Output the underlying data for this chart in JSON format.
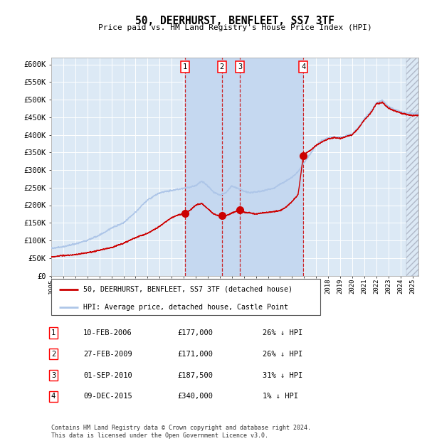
{
  "title": "50, DEERHURST, BENFLEET, SS7 3TF",
  "subtitle": "Price paid vs. HM Land Registry's House Price Index (HPI)",
  "ylim": [
    0,
    620000
  ],
  "yticks": [
    0,
    50000,
    100000,
    150000,
    200000,
    250000,
    300000,
    350000,
    400000,
    450000,
    500000,
    550000,
    600000
  ],
  "ytick_labels": [
    "£0",
    "£50K",
    "£100K",
    "£150K",
    "£200K",
    "£250K",
    "£300K",
    "£350K",
    "£400K",
    "£450K",
    "£500K",
    "£550K",
    "£600K"
  ],
  "hpi_color": "#aec6e8",
  "red_line_color": "#cc0000",
  "background_color": "#ffffff",
  "plot_bg_color": "#dce9f5",
  "grid_color": "#ffffff",
  "shade_color": "#c5d8f0",
  "transactions": [
    {
      "num": 1,
      "date": "10-FEB-2006",
      "price": 177000,
      "pct": "26%",
      "x_year": 2006.11
    },
    {
      "num": 2,
      "date": "27-FEB-2009",
      "price": 171000,
      "pct": "26%",
      "x_year": 2009.16
    },
    {
      "num": 3,
      "date": "01-SEP-2010",
      "price": 187500,
      "pct": "31%",
      "x_year": 2010.67
    },
    {
      "num": 4,
      "date": "09-DEC-2015",
      "price": 340000,
      "pct": "1%",
      "x_year": 2015.94
    }
  ],
  "legend_red_label": "50, DEERHURST, BENFLEET, SS7 3TF (detached house)",
  "legend_blue_label": "HPI: Average price, detached house, Castle Point",
  "footnote": "Contains HM Land Registry data © Crown copyright and database right 2024.\nThis data is licensed under the Open Government Licence v3.0.",
  "xmin": 1995.0,
  "xmax": 2025.5,
  "hatch_start": 2024.5,
  "hpi_key_points": [
    [
      1995.0,
      78000
    ],
    [
      1996.0,
      82000
    ],
    [
      1997.0,
      90000
    ],
    [
      1998.0,
      100000
    ],
    [
      1999.0,
      115000
    ],
    [
      2000.0,
      135000
    ],
    [
      2001.0,
      150000
    ],
    [
      2002.0,
      180000
    ],
    [
      2003.0,
      215000
    ],
    [
      2004.0,
      235000
    ],
    [
      2005.0,
      242000
    ],
    [
      2006.0,
      248000
    ],
    [
      2007.0,
      255000
    ],
    [
      2007.5,
      268000
    ],
    [
      2008.0,
      255000
    ],
    [
      2008.5,
      237000
    ],
    [
      2009.0,
      228000
    ],
    [
      2009.5,
      235000
    ],
    [
      2010.0,
      255000
    ],
    [
      2010.5,
      248000
    ],
    [
      2011.0,
      240000
    ],
    [
      2011.5,
      235000
    ],
    [
      2012.0,
      238000
    ],
    [
      2012.5,
      240000
    ],
    [
      2013.0,
      245000
    ],
    [
      2013.5,
      248000
    ],
    [
      2014.0,
      260000
    ],
    [
      2014.5,
      268000
    ],
    [
      2015.0,
      280000
    ],
    [
      2015.5,
      295000
    ],
    [
      2016.0,
      320000
    ],
    [
      2016.5,
      345000
    ],
    [
      2017.0,
      370000
    ],
    [
      2017.5,
      385000
    ],
    [
      2018.0,
      390000
    ],
    [
      2018.5,
      395000
    ],
    [
      2019.0,
      392000
    ],
    [
      2019.5,
      398000
    ],
    [
      2020.0,
      402000
    ],
    [
      2020.5,
      420000
    ],
    [
      2021.0,
      445000
    ],
    [
      2021.5,
      465000
    ],
    [
      2022.0,
      490000
    ],
    [
      2022.5,
      498000
    ],
    [
      2023.0,
      480000
    ],
    [
      2023.5,
      472000
    ],
    [
      2024.0,
      465000
    ],
    [
      2024.5,
      462000
    ],
    [
      2025.0,
      460000
    ]
  ],
  "red_key_points": [
    [
      1995.0,
      53000
    ],
    [
      1996.0,
      57000
    ],
    [
      1997.0,
      60000
    ],
    [
      1998.0,
      65000
    ],
    [
      1999.0,
      72000
    ],
    [
      2000.0,
      80000
    ],
    [
      2001.0,
      92000
    ],
    [
      2002.0,
      108000
    ],
    [
      2003.0,
      120000
    ],
    [
      2004.0,
      140000
    ],
    [
      2005.0,
      165000
    ],
    [
      2005.5,
      172000
    ],
    [
      2006.0,
      175000
    ],
    [
      2006.11,
      177000
    ],
    [
      2006.5,
      185000
    ],
    [
      2007.0,
      200000
    ],
    [
      2007.5,
      205000
    ],
    [
      2008.0,
      190000
    ],
    [
      2008.5,
      175000
    ],
    [
      2009.0,
      168000
    ],
    [
      2009.16,
      171000
    ],
    [
      2009.5,
      170000
    ],
    [
      2010.0,
      178000
    ],
    [
      2010.5,
      185000
    ],
    [
      2010.67,
      187500
    ],
    [
      2011.0,
      180000
    ],
    [
      2011.5,
      178000
    ],
    [
      2012.0,
      175000
    ],
    [
      2012.5,
      178000
    ],
    [
      2013.0,
      180000
    ],
    [
      2013.5,
      182000
    ],
    [
      2014.0,
      185000
    ],
    [
      2014.5,
      195000
    ],
    [
      2015.0,
      210000
    ],
    [
      2015.5,
      230000
    ],
    [
      2015.94,
      340000
    ],
    [
      2016.0,
      345000
    ],
    [
      2016.5,
      355000
    ],
    [
      2017.0,
      370000
    ],
    [
      2017.5,
      380000
    ],
    [
      2018.0,
      388000
    ],
    [
      2018.5,
      392000
    ],
    [
      2019.0,
      390000
    ],
    [
      2019.5,
      395000
    ],
    [
      2020.0,
      400000
    ],
    [
      2020.5,
      418000
    ],
    [
      2021.0,
      442000
    ],
    [
      2021.5,
      460000
    ],
    [
      2022.0,
      488000
    ],
    [
      2022.5,
      492000
    ],
    [
      2023.0,
      476000
    ],
    [
      2023.5,
      468000
    ],
    [
      2024.0,
      462000
    ],
    [
      2024.5,
      458000
    ],
    [
      2025.0,
      455000
    ]
  ]
}
